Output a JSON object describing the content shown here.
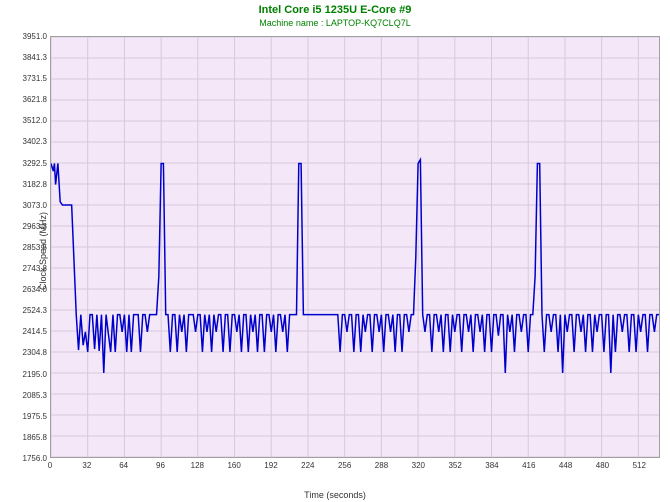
{
  "title": "Intel Core i5 1235U E-Core #9",
  "subtitle": "Machine name : LAPTOP-KQ7CLQ7L",
  "y_axis_label": "Clock Speed (MHz)",
  "x_axis_label": "Time (seconds)",
  "chart": {
    "type": "line",
    "ylim": [
      1756.0,
      3951.0
    ],
    "xlim": [
      0,
      530
    ],
    "y_ticks": [
      1756.0,
      1865.8,
      1975.5,
      2085.3,
      2195.0,
      2304.8,
      2414.5,
      2524.3,
      2634.0,
      2743.8,
      2853.5,
      2963.3,
      3073.0,
      3182.8,
      3292.5,
      3402.3,
      3512.0,
      3621.8,
      3731.5,
      3841.3,
      3951.0
    ],
    "x_ticks": [
      0,
      32,
      64,
      96,
      128,
      160,
      192,
      224,
      256,
      288,
      320,
      352,
      384,
      416,
      448,
      480,
      512
    ],
    "background_color": "#f4e8f8",
    "grid_color": "#d8c8dc",
    "line_color": "#0000cc",
    "line_width": 1.5,
    "title_color": "#008000",
    "data": [
      [
        0,
        3290
      ],
      [
        2,
        3250
      ],
      [
        3,
        3290
      ],
      [
        4,
        3180
      ],
      [
        6,
        3290
      ],
      [
        8,
        3090
      ],
      [
        10,
        3073
      ],
      [
        14,
        3073
      ],
      [
        18,
        3073
      ],
      [
        22,
        2500
      ],
      [
        24,
        2315
      ],
      [
        26,
        2500
      ],
      [
        28,
        2340
      ],
      [
        30,
        2410
      ],
      [
        32,
        2305
      ],
      [
        34,
        2500
      ],
      [
        36,
        2500
      ],
      [
        38,
        2320
      ],
      [
        40,
        2500
      ],
      [
        42,
        2310
      ],
      [
        44,
        2500
      ],
      [
        46,
        2195
      ],
      [
        48,
        2500
      ],
      [
        50,
        2400
      ],
      [
        52,
        2305
      ],
      [
        54,
        2500
      ],
      [
        56,
        2305
      ],
      [
        58,
        2500
      ],
      [
        60,
        2500
      ],
      [
        62,
        2410
      ],
      [
        64,
        2500
      ],
      [
        66,
        2305
      ],
      [
        68,
        2500
      ],
      [
        70,
        2305
      ],
      [
        72,
        2500
      ],
      [
        74,
        2500
      ],
      [
        76,
        2500
      ],
      [
        78,
        2305
      ],
      [
        80,
        2500
      ],
      [
        82,
        2500
      ],
      [
        84,
        2410
      ],
      [
        86,
        2500
      ],
      [
        88,
        2500
      ],
      [
        90,
        2500
      ],
      [
        92,
        2500
      ],
      [
        94,
        2700
      ],
      [
        96,
        3290
      ],
      [
        98,
        3290
      ],
      [
        100,
        2500
      ],
      [
        102,
        2500
      ],
      [
        104,
        2305
      ],
      [
        106,
        2500
      ],
      [
        108,
        2500
      ],
      [
        110,
        2305
      ],
      [
        112,
        2500
      ],
      [
        114,
        2410
      ],
      [
        116,
        2500
      ],
      [
        118,
        2305
      ],
      [
        120,
        2500
      ],
      [
        122,
        2500
      ],
      [
        124,
        2500
      ],
      [
        126,
        2410
      ],
      [
        128,
        2500
      ],
      [
        130,
        2500
      ],
      [
        132,
        2305
      ],
      [
        134,
        2500
      ],
      [
        136,
        2410
      ],
      [
        138,
        2500
      ],
      [
        140,
        2305
      ],
      [
        142,
        2500
      ],
      [
        144,
        2410
      ],
      [
        146,
        2500
      ],
      [
        148,
        2500
      ],
      [
        150,
        2305
      ],
      [
        152,
        2500
      ],
      [
        154,
        2500
      ],
      [
        156,
        2305
      ],
      [
        158,
        2500
      ],
      [
        160,
        2500
      ],
      [
        162,
        2410
      ],
      [
        164,
        2500
      ],
      [
        166,
        2305
      ],
      [
        168,
        2500
      ],
      [
        170,
        2500
      ],
      [
        172,
        2305
      ],
      [
        174,
        2500
      ],
      [
        176,
        2410
      ],
      [
        178,
        2500
      ],
      [
        180,
        2305
      ],
      [
        182,
        2500
      ],
      [
        184,
        2500
      ],
      [
        186,
        2305
      ],
      [
        188,
        2500
      ],
      [
        190,
        2500
      ],
      [
        192,
        2410
      ],
      [
        194,
        2500
      ],
      [
        196,
        2305
      ],
      [
        198,
        2500
      ],
      [
        200,
        2500
      ],
      [
        202,
        2410
      ],
      [
        204,
        2500
      ],
      [
        206,
        2305
      ],
      [
        208,
        2500
      ],
      [
        210,
        2500
      ],
      [
        212,
        2500
      ],
      [
        214,
        2500
      ],
      [
        216,
        3290
      ],
      [
        218,
        3290
      ],
      [
        220,
        2500
      ],
      [
        222,
        2500
      ],
      [
        224,
        2500
      ],
      [
        226,
        2500
      ],
      [
        228,
        2500
      ],
      [
        230,
        2500
      ],
      [
        232,
        2500
      ],
      [
        234,
        2500
      ],
      [
        236,
        2500
      ],
      [
        238,
        2500
      ],
      [
        240,
        2500
      ],
      [
        242,
        2500
      ],
      [
        244,
        2500
      ],
      [
        246,
        2500
      ],
      [
        248,
        2500
      ],
      [
        250,
        2500
      ],
      [
        252,
        2305
      ],
      [
        254,
        2500
      ],
      [
        256,
        2500
      ],
      [
        258,
        2410
      ],
      [
        260,
        2500
      ],
      [
        262,
        2500
      ],
      [
        264,
        2305
      ],
      [
        266,
        2500
      ],
      [
        268,
        2500
      ],
      [
        270,
        2305
      ],
      [
        272,
        2500
      ],
      [
        274,
        2410
      ],
      [
        276,
        2500
      ],
      [
        278,
        2500
      ],
      [
        280,
        2305
      ],
      [
        282,
        2500
      ],
      [
        284,
        2500
      ],
      [
        286,
        2410
      ],
      [
        288,
        2500
      ],
      [
        290,
        2305
      ],
      [
        292,
        2500
      ],
      [
        294,
        2500
      ],
      [
        296,
        2410
      ],
      [
        298,
        2500
      ],
      [
        300,
        2305
      ],
      [
        302,
        2500
      ],
      [
        304,
        2500
      ],
      [
        306,
        2305
      ],
      [
        308,
        2500
      ],
      [
        310,
        2500
      ],
      [
        312,
        2410
      ],
      [
        314,
        2500
      ],
      [
        316,
        2500
      ],
      [
        318,
        2800
      ],
      [
        320,
        3290
      ],
      [
        322,
        3310
      ],
      [
        324,
        2500
      ],
      [
        326,
        2410
      ],
      [
        328,
        2500
      ],
      [
        330,
        2500
      ],
      [
        332,
        2305
      ],
      [
        334,
        2500
      ],
      [
        336,
        2500
      ],
      [
        338,
        2410
      ],
      [
        340,
        2500
      ],
      [
        342,
        2305
      ],
      [
        344,
        2500
      ],
      [
        346,
        2500
      ],
      [
        348,
        2305
      ],
      [
        350,
        2500
      ],
      [
        352,
        2410
      ],
      [
        354,
        2500
      ],
      [
        356,
        2500
      ],
      [
        358,
        2305
      ],
      [
        360,
        2500
      ],
      [
        362,
        2500
      ],
      [
        364,
        2410
      ],
      [
        366,
        2500
      ],
      [
        368,
        2305
      ],
      [
        370,
        2500
      ],
      [
        372,
        2500
      ],
      [
        374,
        2410
      ],
      [
        376,
        2500
      ],
      [
        378,
        2305
      ],
      [
        380,
        2500
      ],
      [
        382,
        2500
      ],
      [
        384,
        2305
      ],
      [
        386,
        2500
      ],
      [
        388,
        2500
      ],
      [
        390,
        2390
      ],
      [
        392,
        2500
      ],
      [
        394,
        2500
      ],
      [
        396,
        2195
      ],
      [
        398,
        2500
      ],
      [
        400,
        2410
      ],
      [
        402,
        2500
      ],
      [
        404,
        2305
      ],
      [
        406,
        2500
      ],
      [
        408,
        2500
      ],
      [
        410,
        2410
      ],
      [
        412,
        2500
      ],
      [
        414,
        2500
      ],
      [
        416,
        2305
      ],
      [
        418,
        2500
      ],
      [
        420,
        2500
      ],
      [
        422,
        2700
      ],
      [
        424,
        3290
      ],
      [
        426,
        3290
      ],
      [
        428,
        2500
      ],
      [
        430,
        2305
      ],
      [
        432,
        2500
      ],
      [
        434,
        2500
      ],
      [
        436,
        2410
      ],
      [
        438,
        2500
      ],
      [
        440,
        2500
      ],
      [
        442,
        2305
      ],
      [
        444,
        2500
      ],
      [
        446,
        2195
      ],
      [
        448,
        2500
      ],
      [
        450,
        2410
      ],
      [
        452,
        2500
      ],
      [
        454,
        2500
      ],
      [
        456,
        2305
      ],
      [
        458,
        2500
      ],
      [
        460,
        2500
      ],
      [
        462,
        2410
      ],
      [
        464,
        2500
      ],
      [
        466,
        2305
      ],
      [
        468,
        2500
      ],
      [
        470,
        2500
      ],
      [
        472,
        2305
      ],
      [
        474,
        2500
      ],
      [
        476,
        2410
      ],
      [
        478,
        2500
      ],
      [
        480,
        2500
      ],
      [
        482,
        2305
      ],
      [
        484,
        2500
      ],
      [
        486,
        2500
      ],
      [
        488,
        2195
      ],
      [
        490,
        2500
      ],
      [
        492,
        2305
      ],
      [
        494,
        2500
      ],
      [
        496,
        2500
      ],
      [
        498,
        2410
      ],
      [
        500,
        2500
      ],
      [
        502,
        2500
      ],
      [
        504,
        2305
      ],
      [
        506,
        2500
      ],
      [
        508,
        2500
      ],
      [
        510,
        2305
      ],
      [
        512,
        2500
      ],
      [
        514,
        2410
      ],
      [
        516,
        2500
      ],
      [
        518,
        2500
      ],
      [
        520,
        2305
      ],
      [
        522,
        2500
      ],
      [
        524,
        2500
      ],
      [
        526,
        2410
      ],
      [
        528,
        2500
      ],
      [
        530,
        2500
      ]
    ]
  }
}
